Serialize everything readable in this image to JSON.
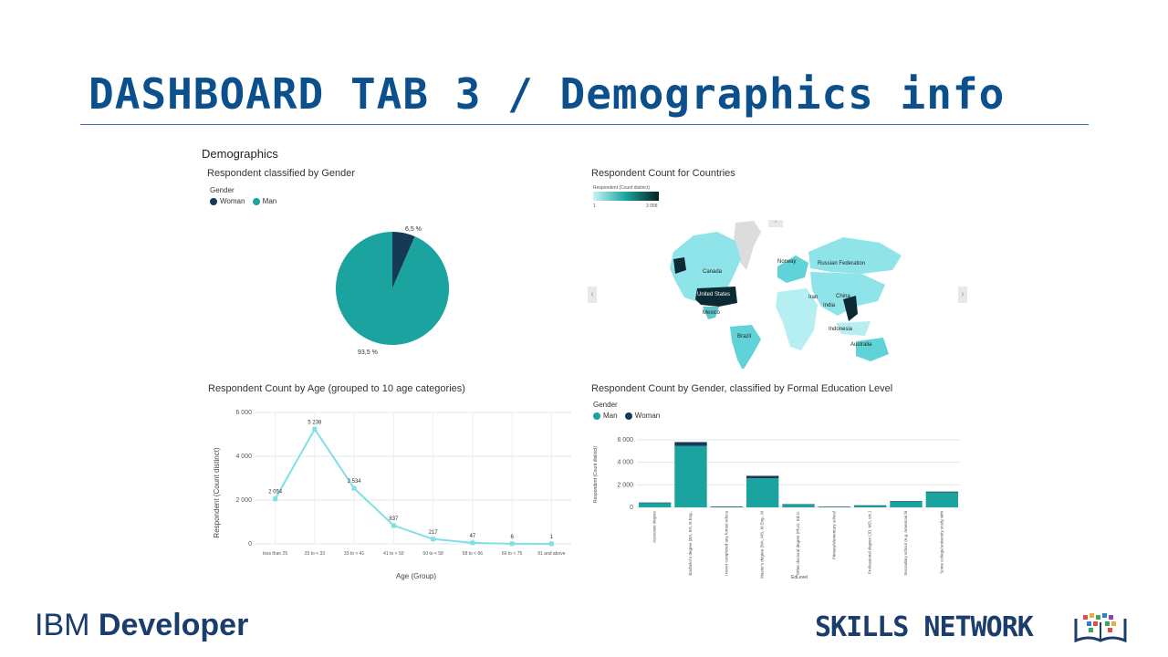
{
  "slide": {
    "title": "DASHBOARD TAB 3 / Demographics info",
    "footer_left_a": "IBM ",
    "footer_left_b": "Developer",
    "footer_right": "SKILLS NETWORK"
  },
  "dashboard": {
    "title": "Demographics"
  },
  "colors": {
    "man": "#1aa39f",
    "woman": "#143a58",
    "line": "#7fe0e6",
    "map_light": "#8ee4e8",
    "map_dark": "#0b2a33"
  },
  "gender_pie": {
    "title": "Respondent classified by Gender",
    "legend_title": "Gender",
    "legend": [
      "Woman",
      "Man"
    ],
    "label_woman": "6,5 %",
    "label_man": "93,5 %"
  },
  "countries": {
    "title": "Respondent Count for Countries",
    "scale_title": "Respondent (Count distinct)",
    "scale_min": "1",
    "scale_max": "3 058",
    "prev_arrow": "‹",
    "next_arrow": "›",
    "labels": [
      "Canada",
      "Norway",
      "Russian Federation",
      "United States",
      "China",
      "Iran",
      "India",
      "Mexico",
      "Indonesia",
      "Brazil",
      "Australia"
    ]
  },
  "age": {
    "title": "Respondent Count by Age (grouped to 10 age categories)",
    "ylabel": "Respondent (Count distinct)",
    "xlabel": "Age (Group)",
    "yticks": [
      "0",
      "2 000",
      "4 000",
      "6 000"
    ],
    "data_labels": [
      "2 054",
      "5 238",
      "2 534",
      "837",
      "217",
      "47",
      "6",
      "1"
    ]
  },
  "education": {
    "title": "Respondent Count by Gender, classified by Formal Education Level",
    "legend_title": "Gender",
    "legend": [
      "Man",
      "Woman"
    ],
    "ylabel": "Respondent (Count distinct)",
    "xlabel": "EdLevel",
    "yticks": [
      "0",
      "2 000",
      "4 000",
      "6 000"
    ]
  },
  "chart_data": [
    {
      "type": "pie",
      "title": "Respondent classified by Gender",
      "categories": [
        "Woman",
        "Man"
      ],
      "values": [
        6.5,
        93.5
      ],
      "legend_title": "Gender",
      "legend_position": "top-left"
    },
    {
      "type": "line",
      "title": "Respondent Count by Age (grouped to 10 age categories)",
      "xlabel": "Age (Group)",
      "ylabel": "Respondent (Count distinct)",
      "categories": [
        "less than 25",
        "25 to < 33",
        "33 to < 41",
        "41 to < 50",
        "50 to < 58",
        "58 to < 66",
        "66 to < 75",
        "91 and above"
      ],
      "values": [
        2054,
        5238,
        2534,
        837,
        217,
        47,
        6,
        1
      ],
      "ylim": [
        0,
        6000
      ],
      "grid": true
    },
    {
      "type": "bar",
      "stacked": true,
      "title": "Respondent Count by Gender, classified by Formal Education Level",
      "xlabel": "EdLevel",
      "ylabel": "Respondent (Count distinct)",
      "categories": [
        "Associate degree",
        "Bachelor's degree (BA, BS, B.Eng., etc.)",
        "I never completed any formal education",
        "Master's degree (MA, MS, M.Eng., MBA, etc.)",
        "Other doctoral degree (Ph.D, Ed.D., etc.)",
        "Primary/elementary school",
        "Professional degree (JD, MD, etc.)",
        "Secondary school (e.g. American high school, Germ...",
        "Some college/university study without ea..."
      ],
      "series": [
        {
          "name": "Man",
          "values": [
            400,
            5450,
            60,
            2580,
            250,
            50,
            160,
            520,
            1340
          ]
        },
        {
          "name": "Woman",
          "values": [
            30,
            350,
            5,
            220,
            30,
            5,
            20,
            40,
            60
          ]
        }
      ],
      "ylim": [
        0,
        6000
      ],
      "legend_position": "top-left"
    }
  ]
}
